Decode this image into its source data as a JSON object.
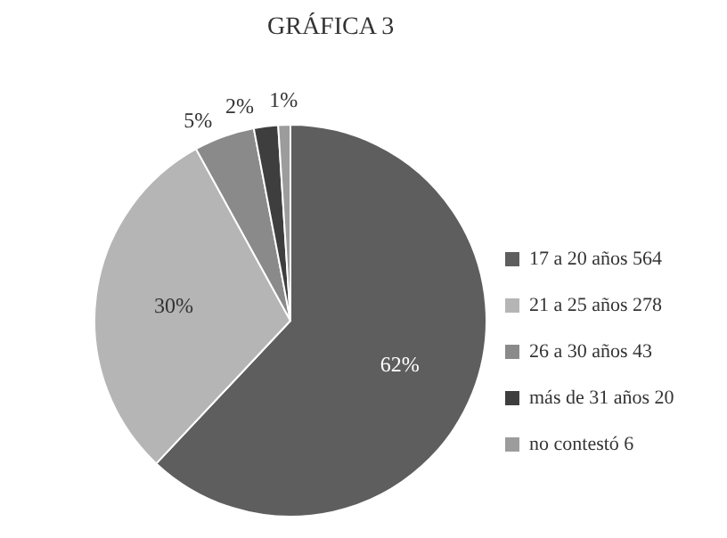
{
  "chart_data": {
    "type": "pie",
    "title": "GRÁFICA 3",
    "categories": [
      "17 a 20 años 564",
      "21 a 25 años 278",
      "26 a 30 años 43",
      "más de 31 años 20",
      "no contestó 6"
    ],
    "values": [
      62,
      30,
      5,
      2,
      1
    ],
    "colors": [
      "#5e5e5e",
      "#b5b5b5",
      "#8a8a8a",
      "#3e3e3e",
      "#9c9c9c"
    ],
    "value_labels": [
      "62%",
      "30%",
      "5%",
      "2%",
      "1%"
    ],
    "legend": "right"
  }
}
